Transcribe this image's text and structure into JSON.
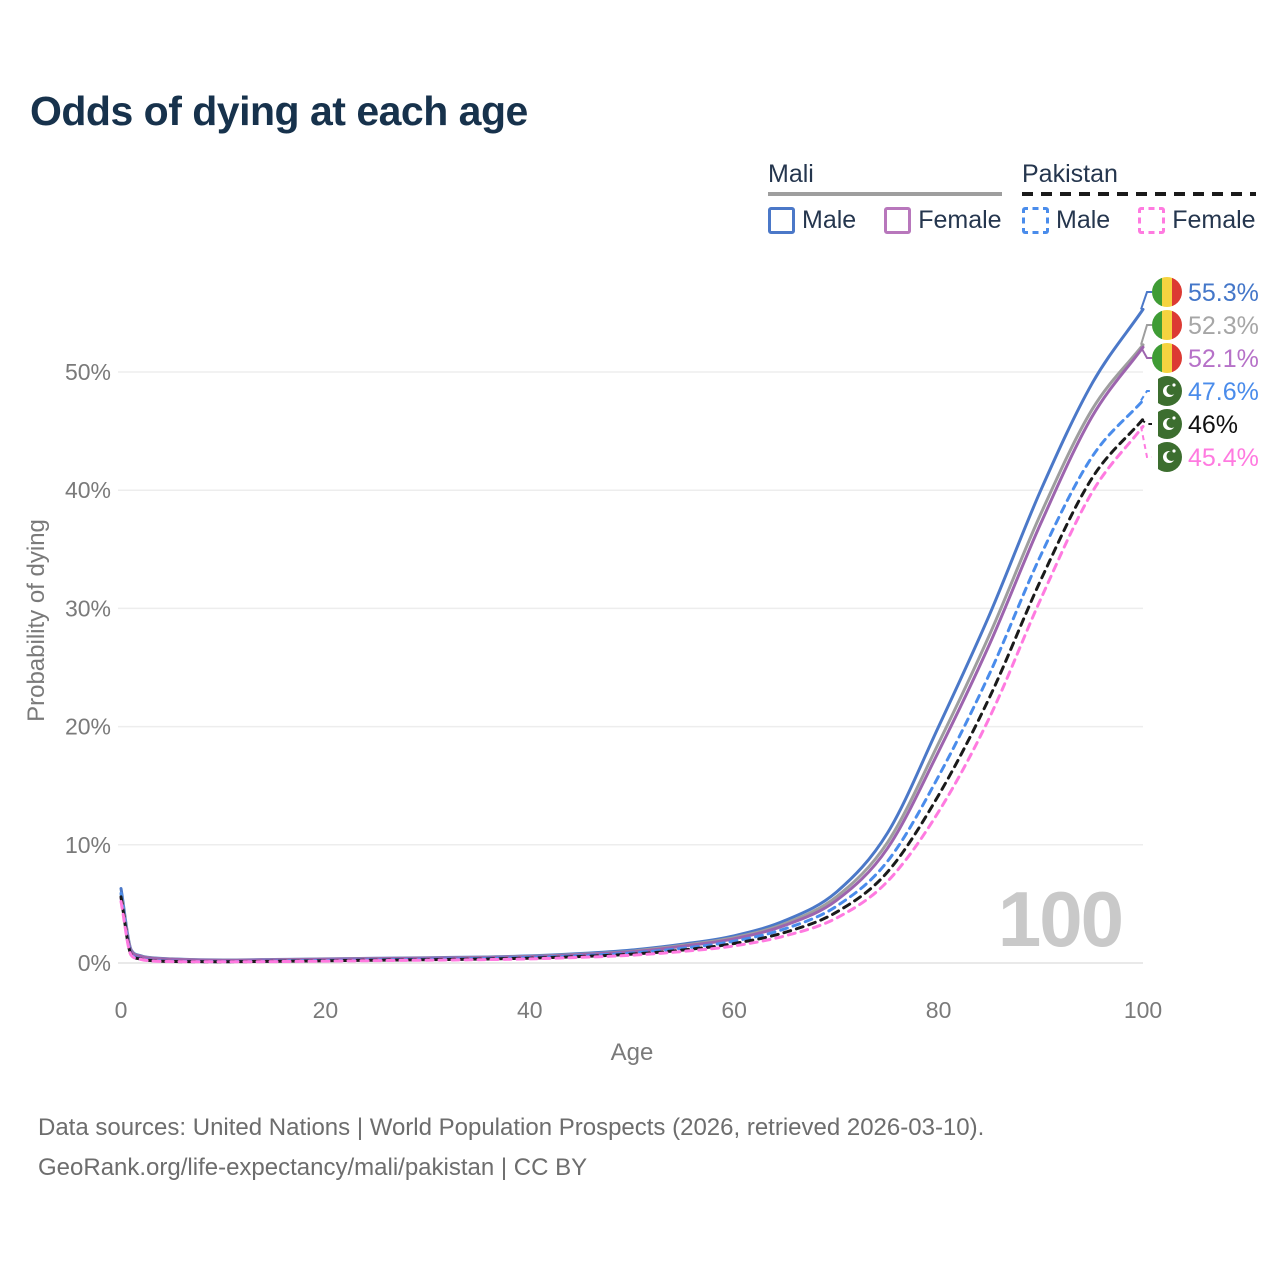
{
  "title": "Odds of dying at each age",
  "legend": {
    "groups": [
      {
        "name": "Mali",
        "underline_style": "solid",
        "underline_color": "#9e9e9e",
        "items": [
          {
            "label": "Male",
            "color": "#4b78c8",
            "dashed": false
          },
          {
            "label": "Female",
            "color": "#b877bc",
            "dashed": false
          }
        ]
      },
      {
        "name": "Pakistan",
        "underline_style": "dashed",
        "underline_color": "#1a1a1a",
        "items": [
          {
            "label": "Male",
            "color": "#4a8ceb",
            "dashed": true
          },
          {
            "label": "Female",
            "color": "#ff7ae0",
            "dashed": true
          }
        ]
      }
    ]
  },
  "watermark": "100",
  "footer": {
    "line1": "Data sources: United Nations | World Population Prospects (2026, retrieved 2026-03-10).",
    "line2": "GeoRank.org/life-expectancy/mali/pakistan | CC BY"
  },
  "chart_data": {
    "type": "line",
    "title": "Odds of dying at each age",
    "xlabel": "Age",
    "ylabel": "Probability of dying",
    "xlim": [
      0,
      100
    ],
    "ylim": [
      0,
      57
    ],
    "grid": "horizontal",
    "legend_position": "top-right",
    "x_tick_values": [
      0,
      20,
      40,
      60,
      80,
      100
    ],
    "x_tick_labels": [
      "0",
      "20",
      "40",
      "60",
      "80",
      "100"
    ],
    "y_tick_values": [
      0,
      10,
      20,
      30,
      40,
      50
    ],
    "y_tick_labels": [
      "0%",
      "10%",
      "20%",
      "30%",
      "40%",
      "50%"
    ],
    "x": [
      0,
      1,
      2,
      3,
      5,
      10,
      15,
      20,
      25,
      30,
      35,
      40,
      45,
      50,
      55,
      60,
      65,
      70,
      75,
      80,
      85,
      90,
      95,
      100
    ],
    "series": [
      {
        "name": "Mali Male",
        "slug": "mali-male",
        "country": "Mali",
        "sex": "Male",
        "color": "#4b78c8",
        "label_color": "#4477c9",
        "dash": "solid",
        "flag": "mali",
        "end_label": "55.3%",
        "values": [
          6.3,
          1.1,
          0.6,
          0.45,
          0.35,
          0.25,
          0.3,
          0.35,
          0.4,
          0.45,
          0.5,
          0.6,
          0.8,
          1.1,
          1.6,
          2.3,
          3.6,
          6.0,
          11,
          20,
          29.5,
          40,
          49,
          55.3
        ]
      },
      {
        "name": "Mali Both sexes",
        "slug": "mali-both",
        "country": "Mali",
        "sex": "Both",
        "color": "#9e9e9e",
        "label_color": "#a6a6a6",
        "dash": "solid",
        "flag": "mali",
        "end_label": "52.3%",
        "values": [
          5.9,
          1.05,
          0.57,
          0.42,
          0.33,
          0.24,
          0.28,
          0.33,
          0.38,
          0.42,
          0.47,
          0.56,
          0.74,
          1.0,
          1.5,
          2.15,
          3.35,
          5.6,
          10.2,
          18.6,
          27.8,
          38,
          46.8,
          52.3
        ]
      },
      {
        "name": "Mali Female",
        "slug": "mali-female",
        "country": "Mali",
        "sex": "Female",
        "color": "#9d64ae",
        "label_color": "#b671c8",
        "dash": "solid",
        "flag": "mali",
        "end_label": "52.1%",
        "values": [
          5.5,
          1.0,
          0.55,
          0.4,
          0.31,
          0.22,
          0.26,
          0.31,
          0.36,
          0.4,
          0.45,
          0.53,
          0.7,
          0.95,
          1.42,
          2.05,
          3.2,
          5.3,
          9.7,
          17.9,
          27,
          37.2,
          46.2,
          52.1
        ]
      },
      {
        "name": "Pakistan Male",
        "slug": "pakistan-male",
        "country": "Pakistan",
        "sex": "Male",
        "color": "#4a8ceb",
        "label_color": "#4a8ceb",
        "dash": "dashed",
        "flag": "pakistan",
        "end_label": "47.6%",
        "values": [
          5.9,
          0.75,
          0.35,
          0.22,
          0.15,
          0.12,
          0.16,
          0.22,
          0.27,
          0.32,
          0.38,
          0.47,
          0.62,
          0.85,
          1.25,
          1.85,
          2.9,
          4.8,
          8.6,
          15.8,
          24.5,
          34.5,
          42.8,
          47.6
        ]
      },
      {
        "name": "Pakistan Both sexes",
        "slug": "pakistan-both",
        "country": "Pakistan",
        "sex": "Both",
        "color": "#1a1a1a",
        "label_color": "#111111",
        "dash": "dashed",
        "flag": "pakistan",
        "end_label": "46%",
        "values": [
          5.6,
          0.7,
          0.32,
          0.2,
          0.13,
          0.11,
          0.14,
          0.19,
          0.24,
          0.28,
          0.33,
          0.41,
          0.55,
          0.75,
          1.1,
          1.65,
          2.6,
          4.3,
          7.7,
          14.2,
          22.5,
          32.4,
          41,
          46
        ]
      },
      {
        "name": "Pakistan Female",
        "slug": "pakistan-female",
        "country": "Pakistan",
        "sex": "Female",
        "color": "#ff7ae0",
        "label_color": "#ff7ae0",
        "dash": "dashed",
        "flag": "pakistan",
        "end_label": "45.4%",
        "values": [
          5.2,
          0.65,
          0.3,
          0.18,
          0.12,
          0.1,
          0.12,
          0.16,
          0.2,
          0.24,
          0.28,
          0.35,
          0.48,
          0.66,
          0.98,
          1.45,
          2.3,
          3.8,
          6.9,
          12.8,
          20.8,
          30.8,
          39.8,
          45.4
        ]
      }
    ],
    "flag_colors": {
      "mali": {
        "green": "#3f9c35",
        "yellow": "#f6d340",
        "red": "#dc3a33"
      },
      "pakistan": {
        "green": "#3c6e2f",
        "white": "#ffffff"
      }
    }
  }
}
